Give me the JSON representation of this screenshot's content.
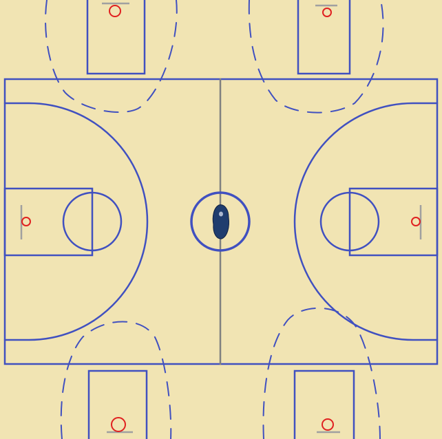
{
  "court": {
    "floor_color": "#f1e4b3",
    "line_color": "#4050c0",
    "center_line_color": "#808080",
    "rim_color": "#e02020",
    "backboard_color": "#a0a0a0"
  },
  "center_figure": {
    "icon": "player-figure-icon",
    "color": "#1f3d6e"
  }
}
